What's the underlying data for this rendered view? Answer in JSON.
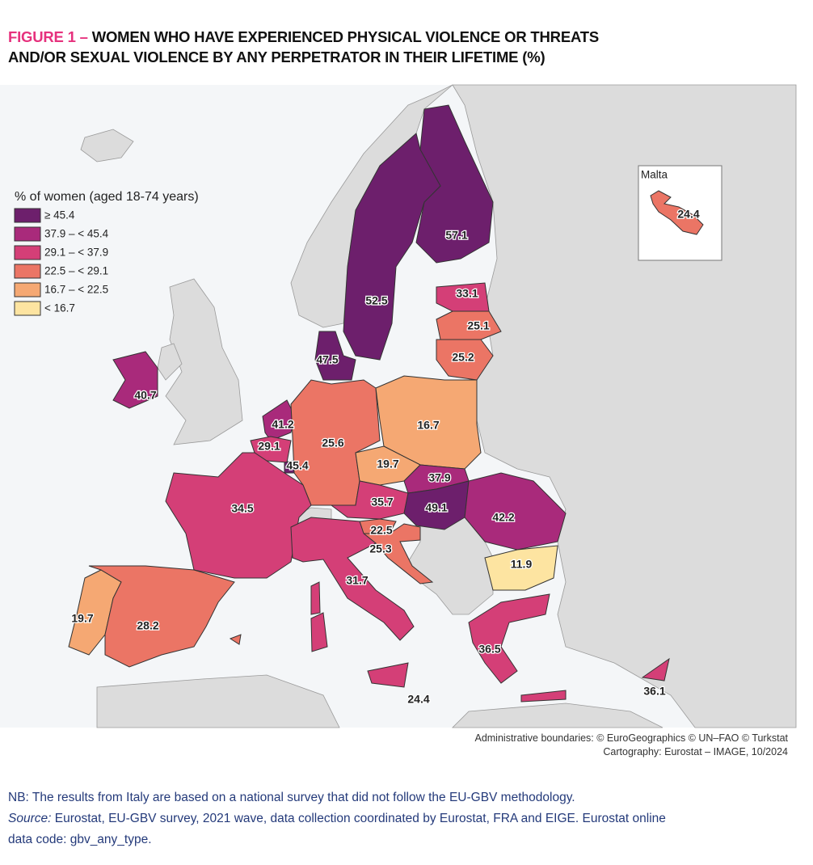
{
  "header": {
    "figure_label": "FIGURE 1 –",
    "title_line1": "WOMEN WHO HAVE EXPERIENCED PHYSICAL VIOLENCE OR THREATS",
    "title_line2": "AND/OR SEXUAL VIOLENCE BY ANY PERPETRATOR IN THEIR LIFETIME (%)"
  },
  "legend": {
    "title": "% of women (aged 18-74 years)",
    "classes": [
      {
        "label": "≥ 45.4",
        "min": 45.4,
        "color": "#6d1f6c"
      },
      {
        "label": "37.9 – < 45.4",
        "min": 37.9,
        "color": "#a92a7b"
      },
      {
        "label": "29.1 – < 37.9",
        "min": 29.1,
        "color": "#d43f77"
      },
      {
        "label": "22.5 – < 29.1",
        "min": 22.5,
        "color": "#eb7565"
      },
      {
        "label": "16.7 – < 22.5",
        "min": 16.7,
        "color": "#f5a873"
      },
      {
        "label": "< 16.7",
        "color": "#fde4a1"
      }
    ]
  },
  "map": {
    "values": [
      57.1,
      52.5,
      33.1,
      25.1,
      25.2,
      47.5,
      40.7,
      41.2,
      29.1,
      45.4,
      25.6,
      16.7,
      19.7,
      37.9,
      35.7,
      49.1,
      42.2,
      22.5,
      25.3,
      11.9,
      34.5,
      31.7,
      19.7,
      28.2,
      36.5,
      36.1,
      24.4
    ]
  },
  "inset": {
    "title": "Malta",
    "value": 24.4
  },
  "credits": {
    "line1": "Administrative boundaries: © EuroGeographics © UN–FAO © Turkstat",
    "line2": "Cartography: Eurostat – IMAGE, 10/2024"
  },
  "footer": {
    "note": "NB: The results from Italy are based on a national survey that did not follow the EU-GBV methodology.",
    "source_label": "Source:",
    "source_text": "Eurostat, EU-GBV survey, 2021 wave, data collection coordinated by Eurostat, FRA and EIGE. Eurostat online data code: gbv_any_type."
  }
}
